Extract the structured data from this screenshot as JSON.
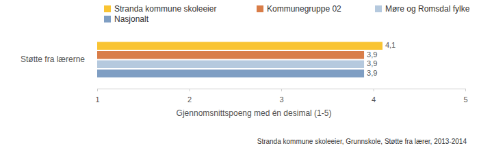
{
  "chart_data": {
    "type": "bar",
    "orientation": "horizontal",
    "categories": [
      "Støtte fra lærerne"
    ],
    "series": [
      {
        "name": "Stranda kommune skoleeier",
        "color": "#f9c433",
        "values": [
          4.1
        ],
        "value_labels": [
          "4,1"
        ]
      },
      {
        "name": "Kommunegruppe 02",
        "color": "#d97d48",
        "values": [
          3.9
        ],
        "value_labels": [
          "3,9"
        ]
      },
      {
        "name": "Møre og Romsdal fylke",
        "color": "#b5c9de",
        "values": [
          3.9
        ],
        "value_labels": [
          "3,9"
        ]
      },
      {
        "name": "Nasjonalt",
        "color": "#7f9ec3",
        "values": [
          3.9
        ],
        "value_labels": [
          "3,9"
        ]
      }
    ],
    "xlim": [
      1,
      5
    ],
    "xticks": [
      1,
      2,
      3,
      4,
      5
    ],
    "xlabel": "Gjennomsnittspoeng med én desimal (1-5)",
    "annotations": [
      "Stranda kommune skoleeier, Grunnskole, Støtte fra lærer, 2013-2014"
    ],
    "data_labels": true,
    "legend": "top",
    "grid": false
  }
}
